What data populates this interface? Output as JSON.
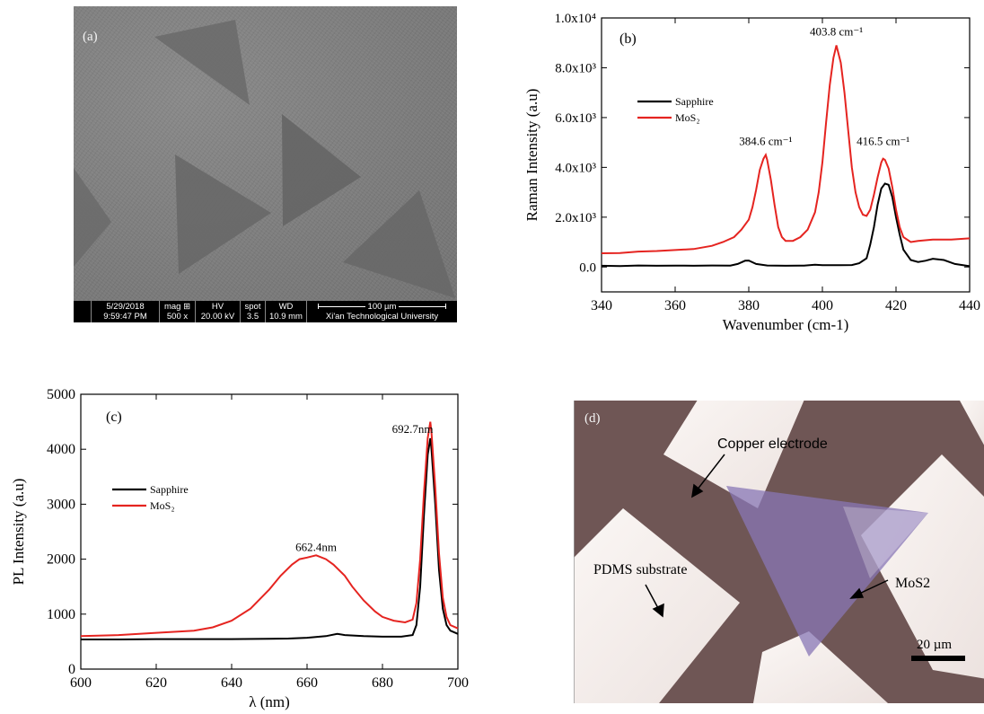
{
  "panel_a": {
    "label": "(a)",
    "date": "5/29/2018",
    "time": "9:59:47 PM",
    "mag_label": "mag ⊞",
    "mag_value": "500 x",
    "hv_label": "HV",
    "hv_value": "20.00 kV",
    "spot_label": "spot",
    "spot_value": "3.5",
    "wd_label": "WD",
    "wd_value": "10.9 mm",
    "scale_label": "100 µm",
    "institution": "Xi'an Technological University",
    "colors": {
      "background": "#7d7d7d",
      "flake": "#6a6a6a",
      "bar": "#000000"
    }
  },
  "panel_d": {
    "label": "(d)",
    "annotations": [
      "Copper electrode",
      "PDMS substrate",
      "MoS2"
    ],
    "scale_label": "20 µm",
    "colors": {
      "electrode": "#6e5654",
      "substrate": "#f3ecea",
      "mos2": "#7d6aa4"
    }
  },
  "chart_data": [
    {
      "type": "line",
      "panel_label": "(b)",
      "xlabel": "Wavenumber (cm-1)",
      "ylabel": "Raman Intensity (a.u)",
      "xlim": [
        340,
        440
      ],
      "ylim": [
        -1000,
        10000
      ],
      "xticks": [
        340,
        360,
        380,
        400,
        420,
        440
      ],
      "xtick_labels": [
        "340",
        "360",
        "380",
        "400",
        "420",
        "440"
      ],
      "yticks": [
        0,
        2000,
        4000,
        6000,
        8000,
        10000
      ],
      "ytick_labels": [
        "0.0",
        "2.0x10³",
        "4.0x10³",
        "6.0x10³",
        "8.0x10³",
        "1.0x10⁴"
      ],
      "legend": {
        "position": "top-left",
        "entries": [
          "Sapphire",
          "MoS₂"
        ]
      },
      "annotations": [
        {
          "text": "384.6 cm⁻¹",
          "x": 384.6,
          "y": 4900
        },
        {
          "text": "403.8 cm⁻¹",
          "x": 403.8,
          "y": 9300
        },
        {
          "text": "416.5 cm⁻¹",
          "x": 416.5,
          "y": 4900
        }
      ],
      "series": [
        {
          "name": "Sapphire",
          "color": "#000000",
          "x": [
            340,
            345,
            350,
            355,
            360,
            365,
            370,
            375,
            377,
            379,
            380,
            382,
            385,
            390,
            395,
            398,
            400,
            405,
            408,
            410,
            412,
            413,
            414,
            415,
            416,
            417,
            418,
            419,
            420,
            421,
            422,
            424,
            426,
            428,
            430,
            433,
            436,
            440
          ],
          "y": [
            50,
            40,
            60,
            50,
            55,
            50,
            60,
            55,
            120,
            250,
            260,
            120,
            60,
            50,
            55,
            90,
            70,
            70,
            80,
            150,
            350,
            900,
            1600,
            2500,
            3150,
            3350,
            3300,
            2800,
            2000,
            1300,
            700,
            280,
            200,
            250,
            330,
            280,
            120,
            30
          ]
        },
        {
          "name": "MoS₂",
          "color": "#e52420",
          "x": [
            340,
            345,
            350,
            355,
            360,
            365,
            370,
            373,
            376,
            378,
            380,
            381,
            382,
            383,
            384,
            384.6,
            385,
            386,
            387,
            388,
            389,
            390,
            392,
            394,
            396,
            398,
            399,
            400,
            401,
            402,
            403,
            403.8,
            405,
            406,
            407,
            408,
            409,
            410,
            411,
            412,
            413,
            414,
            415,
            416,
            416.5,
            417,
            418,
            419,
            420,
            421,
            422,
            424,
            426,
            430,
            435,
            440
          ],
          "y": [
            550,
            560,
            620,
            640,
            680,
            720,
            850,
            1000,
            1200,
            1500,
            1900,
            2400,
            3100,
            3900,
            4350,
            4500,
            4300,
            3500,
            2500,
            1600,
            1200,
            1050,
            1050,
            1200,
            1500,
            2200,
            3000,
            4200,
            5800,
            7300,
            8400,
            8900,
            8200,
            7000,
            5500,
            4000,
            3000,
            2400,
            2100,
            2050,
            2300,
            2900,
            3600,
            4200,
            4350,
            4300,
            3950,
            3200,
            2300,
            1600,
            1200,
            1000,
            1050,
            1100,
            1100,
            1150
          ]
        }
      ]
    },
    {
      "type": "line",
      "panel_label": "(c)",
      "xlabel": "λ (nm)",
      "ylabel": "PL Intensity (a.u)",
      "xlim": [
        600,
        700
      ],
      "ylim": [
        0,
        5000
      ],
      "xticks": [
        600,
        620,
        640,
        660,
        680,
        700
      ],
      "xtick_labels": [
        "600",
        "620",
        "640",
        "660",
        "680",
        "700"
      ],
      "yticks": [
        0,
        1000,
        2000,
        3000,
        4000,
        5000
      ],
      "ytick_labels": [
        "0",
        "1000",
        "2000",
        "3000",
        "4000",
        "5000"
      ],
      "legend": {
        "position": "center-left",
        "entries": [
          "Sapphire",
          "MoS₂"
        ]
      },
      "annotations": [
        {
          "text": "662.4nm",
          "x": 662.4,
          "y": 2150
        },
        {
          "text": "692.7nm",
          "x": 688,
          "y": 4300
        }
      ],
      "series": [
        {
          "name": "Sapphire",
          "color": "#000000",
          "x": [
            600,
            610,
            620,
            630,
            640,
            650,
            655,
            660,
            665,
            668,
            670,
            675,
            680,
            685,
            688,
            689,
            690,
            691,
            692,
            692.7,
            693,
            694,
            695,
            696,
            697,
            698,
            700
          ],
          "y": [
            540,
            540,
            545,
            545,
            545,
            550,
            555,
            570,
            600,
            640,
            620,
            600,
            590,
            590,
            620,
            800,
            1500,
            2800,
            3900,
            4200,
            4000,
            3000,
            1800,
            1100,
            800,
            700,
            640
          ]
        },
        {
          "name": "MoS₂",
          "color": "#e52420",
          "x": [
            600,
            610,
            620,
            630,
            635,
            640,
            645,
            650,
            653,
            656,
            658,
            660,
            662.4,
            665,
            667,
            670,
            672,
            675,
            678,
            680,
            683,
            686,
            688,
            689,
            690,
            691,
            692,
            692.7,
            693,
            694,
            695,
            696,
            697,
            698,
            700
          ],
          "y": [
            600,
            620,
            660,
            700,
            760,
            880,
            1100,
            1450,
            1700,
            1900,
            2000,
            2030,
            2070,
            2000,
            1900,
            1700,
            1500,
            1250,
            1050,
            950,
            880,
            850,
            900,
            1200,
            2000,
            3200,
            4200,
            4500,
            4300,
            3300,
            2100,
            1300,
            950,
            800,
            740
          ]
        }
      ]
    }
  ]
}
